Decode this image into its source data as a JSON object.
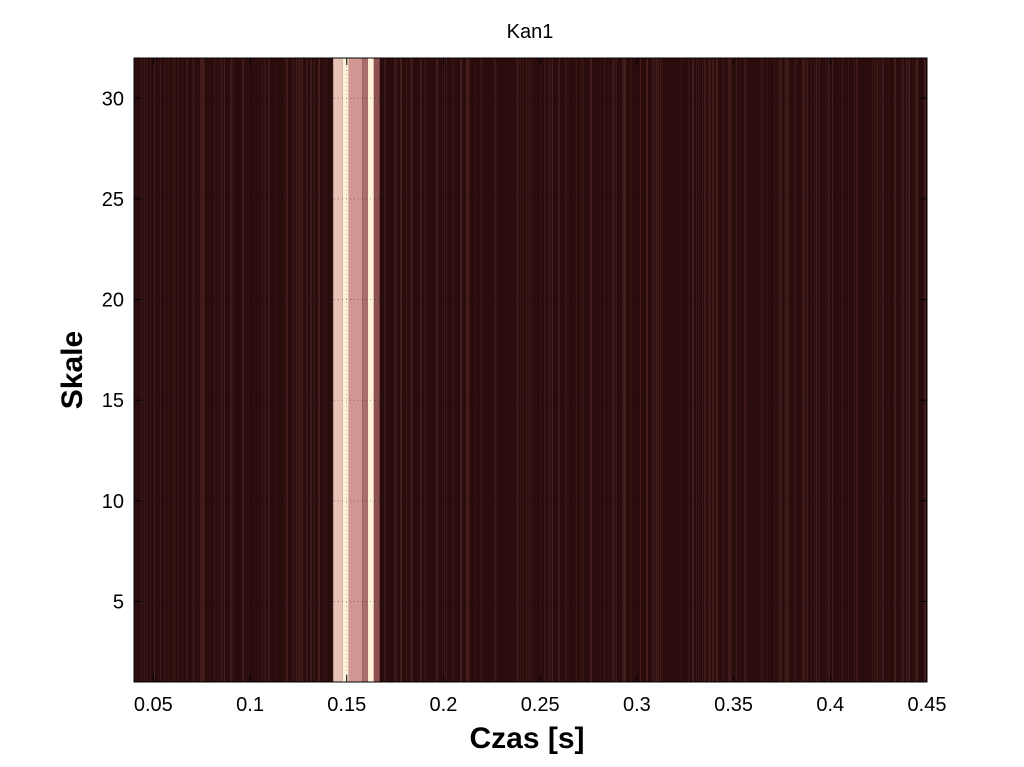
{
  "chart_data": {
    "type": "heatmap",
    "title": "Kan1",
    "xlabel": "Czas [s]",
    "ylabel": "Skale",
    "xlim": [
      0.04,
      0.45
    ],
    "ylim": [
      1,
      32
    ],
    "x_ticks": [
      0.05,
      0.1,
      0.15,
      0.2,
      0.25,
      0.3,
      0.35,
      0.4,
      0.45
    ],
    "x_tick_labels": [
      "0.05",
      "0.1",
      "0.15",
      "0.2",
      "0.25",
      "0.3",
      "0.35",
      "0.4",
      "0.45"
    ],
    "y_ticks": [
      5,
      10,
      15,
      20,
      25,
      30
    ],
    "y_tick_labels": [
      "5",
      "10",
      "15",
      "20",
      "25",
      "30"
    ],
    "grid": true,
    "colormap": "pink",
    "colors": {
      "background": "#2a0c0c",
      "low": "#3a1616",
      "mid": "#c88888",
      "high": "#fff0d8"
    },
    "bright_bands": [
      {
        "x_start": 0.143,
        "x_end": 0.148,
        "intensity": 0.85
      },
      {
        "x_start": 0.148,
        "x_end": 0.151,
        "intensity": 1.0
      },
      {
        "x_start": 0.151,
        "x_end": 0.158,
        "intensity": 0.7
      },
      {
        "x_start": 0.158,
        "x_end": 0.161,
        "intensity": 0.55
      },
      {
        "x_start": 0.161,
        "x_end": 0.164,
        "intensity": 1.0
      },
      {
        "x_start": 0.164,
        "x_end": 0.167,
        "intensity": 0.45
      }
    ]
  }
}
